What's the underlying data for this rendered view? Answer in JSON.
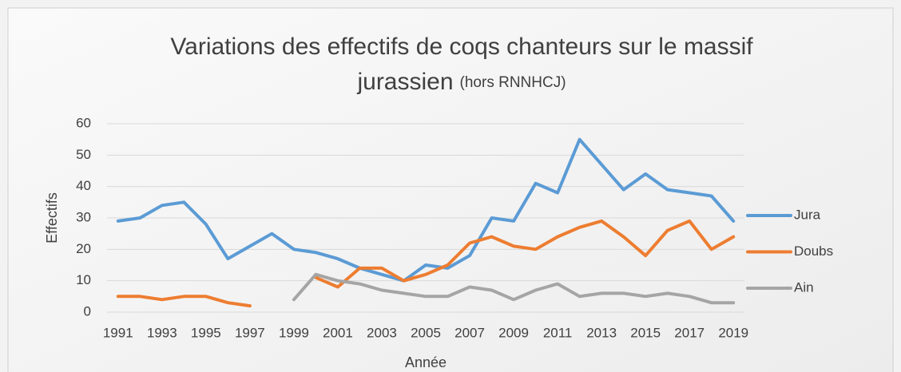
{
  "chart_data": {
    "type": "line",
    "title": [
      "Variations des effectifs de coqs chanteurs sur le massif",
      "jurassien"
    ],
    "subtitle": "(hors RNNHCJ)",
    "x_label": "Année",
    "y_label": "Effectifs",
    "categories": [
      "1991",
      null,
      "1993",
      null,
      "1995",
      null,
      "1997",
      null,
      "1999",
      null,
      "2001",
      null,
      "2003",
      null,
      "2005",
      null,
      "2007",
      null,
      "2009",
      null,
      "2011",
      null,
      "2013",
      null,
      "2015",
      null,
      "2017",
      null,
      "2019"
    ],
    "series": [
      {
        "name": "Jura",
        "color": "#5b9bd5",
        "values": [
          29,
          30,
          34,
          35,
          28,
          17,
          21,
          25,
          20,
          19,
          17,
          14,
          12,
          10,
          15,
          14,
          18,
          30,
          29,
          41,
          38,
          55,
          47,
          39,
          44,
          39,
          38,
          37,
          29
        ]
      },
      {
        "name": "Doubs",
        "color": "#ed7d31",
        "values": [
          5,
          5,
          4,
          5,
          5,
          3,
          2,
          null,
          null,
          11,
          8,
          14,
          14,
          10,
          12,
          15,
          22,
          24,
          21,
          20,
          24,
          27,
          29,
          24,
          18,
          26,
          29,
          20,
          24
        ]
      },
      {
        "name": "Ain",
        "color": "#a5a5a5",
        "values": [
          null,
          null,
          null,
          null,
          null,
          null,
          null,
          null,
          4,
          12,
          10,
          9,
          7,
          6,
          5,
          5,
          8,
          7,
          4,
          7,
          9,
          5,
          6,
          6,
          5,
          6,
          5,
          3,
          3
        ]
      }
    ],
    "ylim": [
      0,
      60
    ],
    "yticks": [
      0,
      10,
      20,
      30,
      40,
      50,
      60
    ],
    "grid": true,
    "legend": "right"
  }
}
